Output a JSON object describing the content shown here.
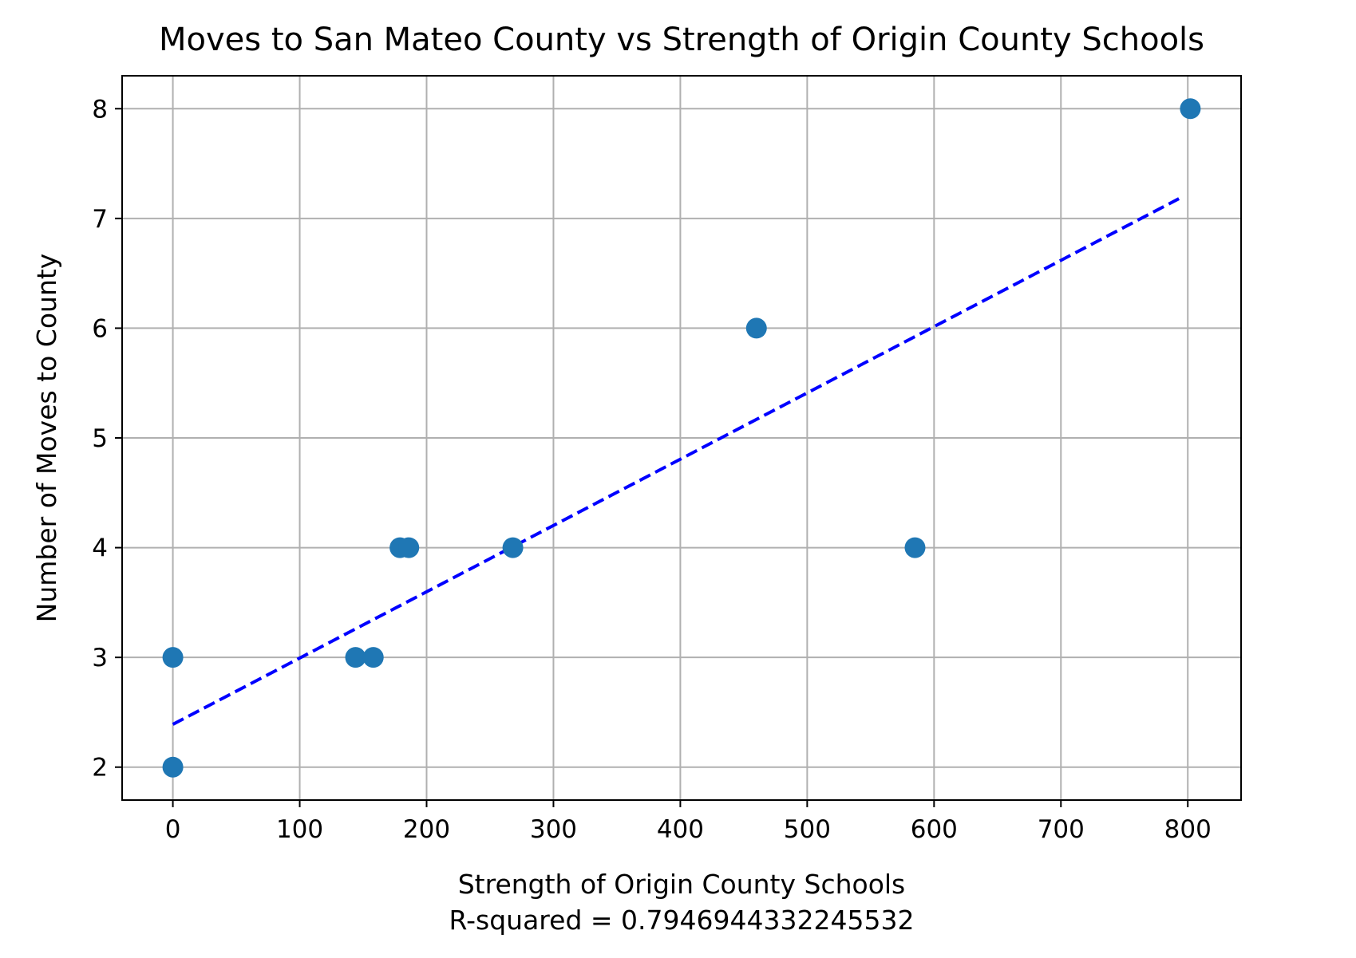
{
  "chart_data": {
    "type": "scatter",
    "title": "Moves to San Mateo County vs Strength of Origin County Schools",
    "xlabel": "Strength of Origin County Schools",
    "xlabel_sub": "R-squared = 0.7946944332245532",
    "ylabel": "Number of Moves to County",
    "xlim": [
      -40,
      842
    ],
    "ylim": [
      1.7,
      8.3
    ],
    "xticks": [
      0,
      100,
      200,
      300,
      400,
      500,
      600,
      700,
      800
    ],
    "yticks": [
      2,
      3,
      4,
      5,
      6,
      7,
      8
    ],
    "grid": true,
    "colors": {
      "points": "#1f77b4",
      "fit_line": "#0000ff"
    },
    "series": [
      {
        "type": "scatter",
        "points": [
          {
            "x": 0,
            "y": 2
          },
          {
            "x": 0,
            "y": 3
          },
          {
            "x": 144,
            "y": 3
          },
          {
            "x": 158,
            "y": 3
          },
          {
            "x": 179,
            "y": 4
          },
          {
            "x": 186,
            "y": 4
          },
          {
            "x": 268,
            "y": 4
          },
          {
            "x": 460,
            "y": 6
          },
          {
            "x": 585,
            "y": 4
          },
          {
            "x": 802,
            "y": 8
          }
        ]
      },
      {
        "type": "line",
        "style": "dashed",
        "points": [
          {
            "x": 0,
            "y": 2.39
          },
          {
            "x": 793,
            "y": 7.18
          }
        ]
      }
    ]
  }
}
